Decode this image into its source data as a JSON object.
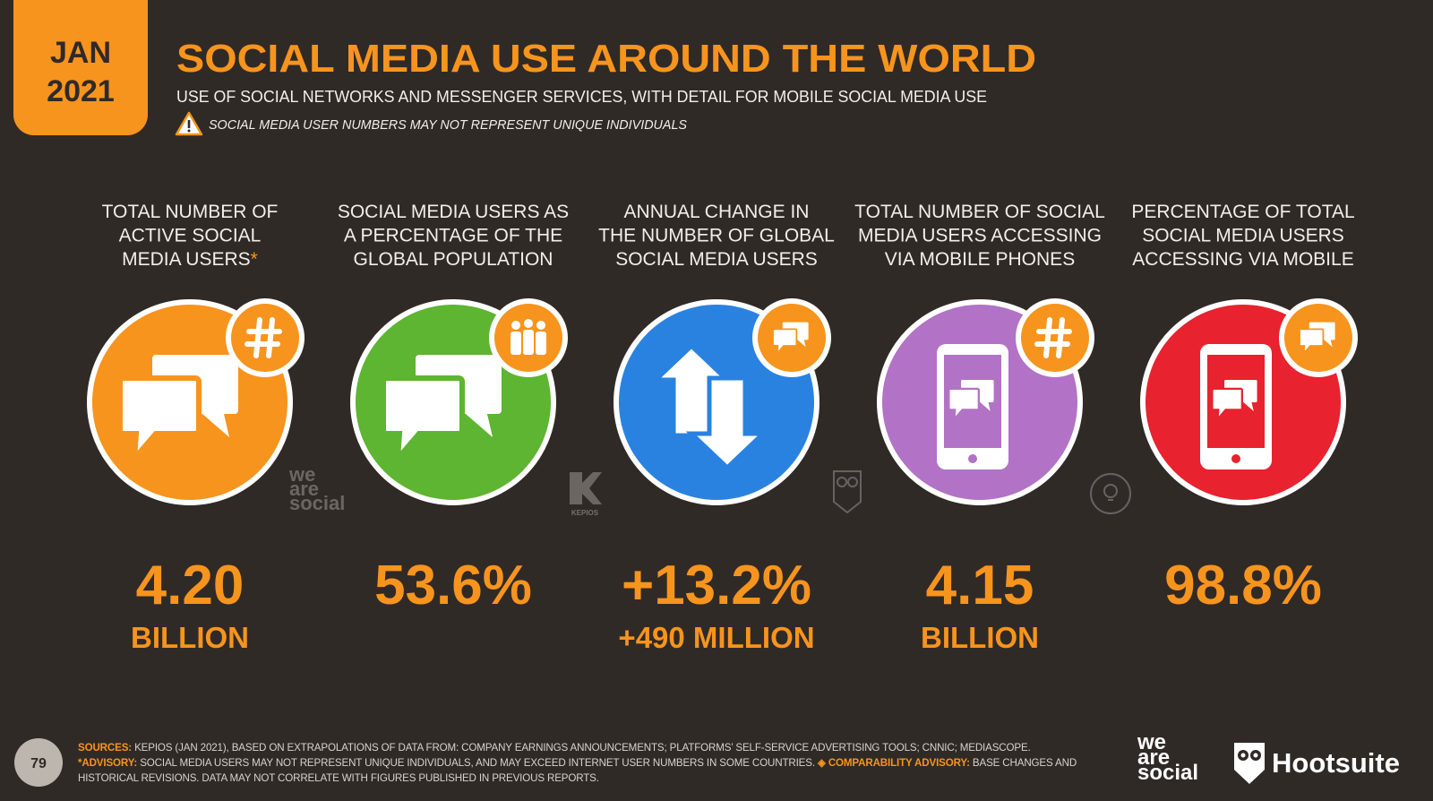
{
  "header": {
    "date_line1": "JAN",
    "date_line2": "2021",
    "title": "SOCIAL MEDIA USE AROUND THE WORLD",
    "subtitle": "USE OF SOCIAL NETWORKS AND MESSENGER SERVICES, WITH DETAIL FOR MOBILE SOCIAL MEDIA USE",
    "warning": "SOCIAL MEDIA USER NUMBERS MAY NOT REPRESENT UNIQUE INDIVIDUALS"
  },
  "stats": [
    {
      "label_lines": [
        "TOTAL NUMBER OF",
        "ACTIVE SOCIAL",
        "MEDIA USERS"
      ],
      "footnote_mark": "*",
      "value": "4.20",
      "unit": "BILLION",
      "color": "#f7941d"
    },
    {
      "label_lines": [
        "SOCIAL MEDIA USERS AS",
        "A PERCENTAGE OF THE",
        "GLOBAL POPULATION"
      ],
      "value": "53.6%",
      "color": "#5db531"
    },
    {
      "label_lines": [
        "ANNUAL CHANGE IN",
        "THE NUMBER OF GLOBAL",
        "SOCIAL MEDIA USERS"
      ],
      "value": "+13.2%",
      "unit": "+490 MILLION",
      "color": "#2a82e0"
    },
    {
      "label_lines": [
        "TOTAL NUMBER OF SOCIAL",
        "MEDIA USERS ACCESSING",
        "VIA MOBILE PHONES"
      ],
      "value": "4.15",
      "unit": "BILLION",
      "color": "#b272c6"
    },
    {
      "label_lines": [
        "PERCENTAGE OF TOTAL",
        "SOCIAL MEDIA USERS",
        "ACCESSING VIA MOBILE"
      ],
      "value": "98.8%",
      "color": "#e8222e"
    }
  ],
  "watermarks": {
    "we_are_social": [
      "we",
      "are",
      "social"
    ],
    "kepios": "KEPIOS"
  },
  "footer": {
    "page_number": "79",
    "sources_label": "SOURCES:",
    "sources_text": "KEPIOS (JAN 2021), BASED ON EXTRAPOLATIONS OF DATA FROM: COMPANY EARNINGS ANNOUNCEMENTS; PLATFORMS’ SELF-SERVICE ADVERTISING TOOLS; CNNIC; MEDIASCOPE.",
    "advisory_label": "*ADVISORY:",
    "advisory_text": "SOCIAL MEDIA USERS MAY NOT REPRESENT UNIQUE INDIVIDUALS, AND MAY EXCEED INTERNET USER NUMBERS IN SOME COUNTRIES.",
    "comparability_label": "◈ COMPARABILITY ADVISORY:",
    "comparability_text": "BASE CHANGES AND HISTORICAL REVISIONS. DATA MAY NOT CORRELATE WITH FIGURES PUBLISHED IN PREVIOUS REPORTS.",
    "logo_we_are_social": [
      "we",
      "are",
      "social"
    ],
    "logo_hootsuite": "Hootsuite"
  }
}
